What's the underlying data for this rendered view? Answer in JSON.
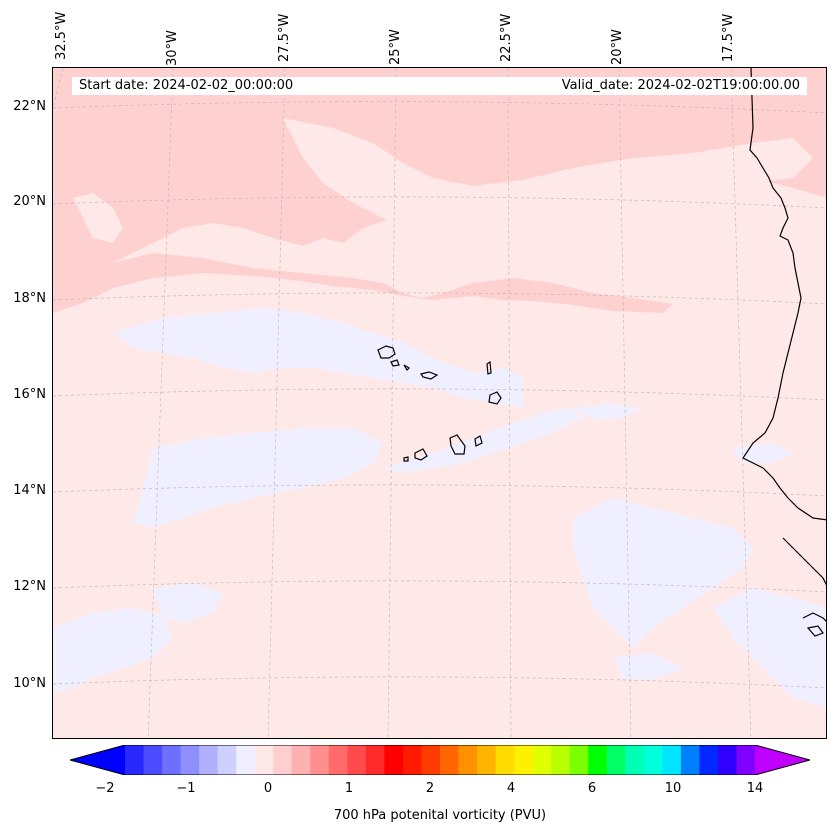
{
  "info": {
    "start_date": "Start date: 2024-02-02_00:00:00",
    "valid_date": "Valid_date: 2024-02-02T19:00:00.00"
  },
  "longitude_labels": [
    "32.5°W",
    "30°W",
    "27.5°W",
    "25°W",
    "22.5°W",
    "20°W",
    "17.5°W"
  ],
  "latitude_labels": [
    "22°N",
    "20°N",
    "18°N",
    "16°N",
    "14°N",
    "12°N",
    "10°N"
  ],
  "colorbar": {
    "title": "700 hPa potenital vorticity (PVU)",
    "tick_labels": [
      "−2",
      "−1",
      "0",
      "1",
      "2",
      "4",
      "6",
      "10",
      "14"
    ],
    "colors": [
      "#0000ff",
      "#2929ff",
      "#4b4bff",
      "#6e6eff",
      "#8f8fff",
      "#b0b0ff",
      "#d0d0ff",
      "#efefff",
      "#ffe8e8",
      "#ffcfcf",
      "#ffb0b0",
      "#ff8e8e",
      "#ff6b6b",
      "#ff4b4b",
      "#ff2a2a",
      "#ff0000",
      "#ff1a00",
      "#ff3c00",
      "#ff6600",
      "#ff9000",
      "#ffb400",
      "#ffdb00",
      "#fff000",
      "#e0ff00",
      "#b8ff00",
      "#7cff00",
      "#00ff00",
      "#00ff66",
      "#00ffb4",
      "#00ffdb",
      "#00e4ff",
      "#0080ff",
      "#0028ff",
      "#3000ff",
      "#8000ff",
      "#c000ff"
    ]
  },
  "legend_colors": {
    "light_blue_region": "#efefff",
    "light_pink_region": "#ffe8e8",
    "pink_region": "#ffd0d0"
  }
}
